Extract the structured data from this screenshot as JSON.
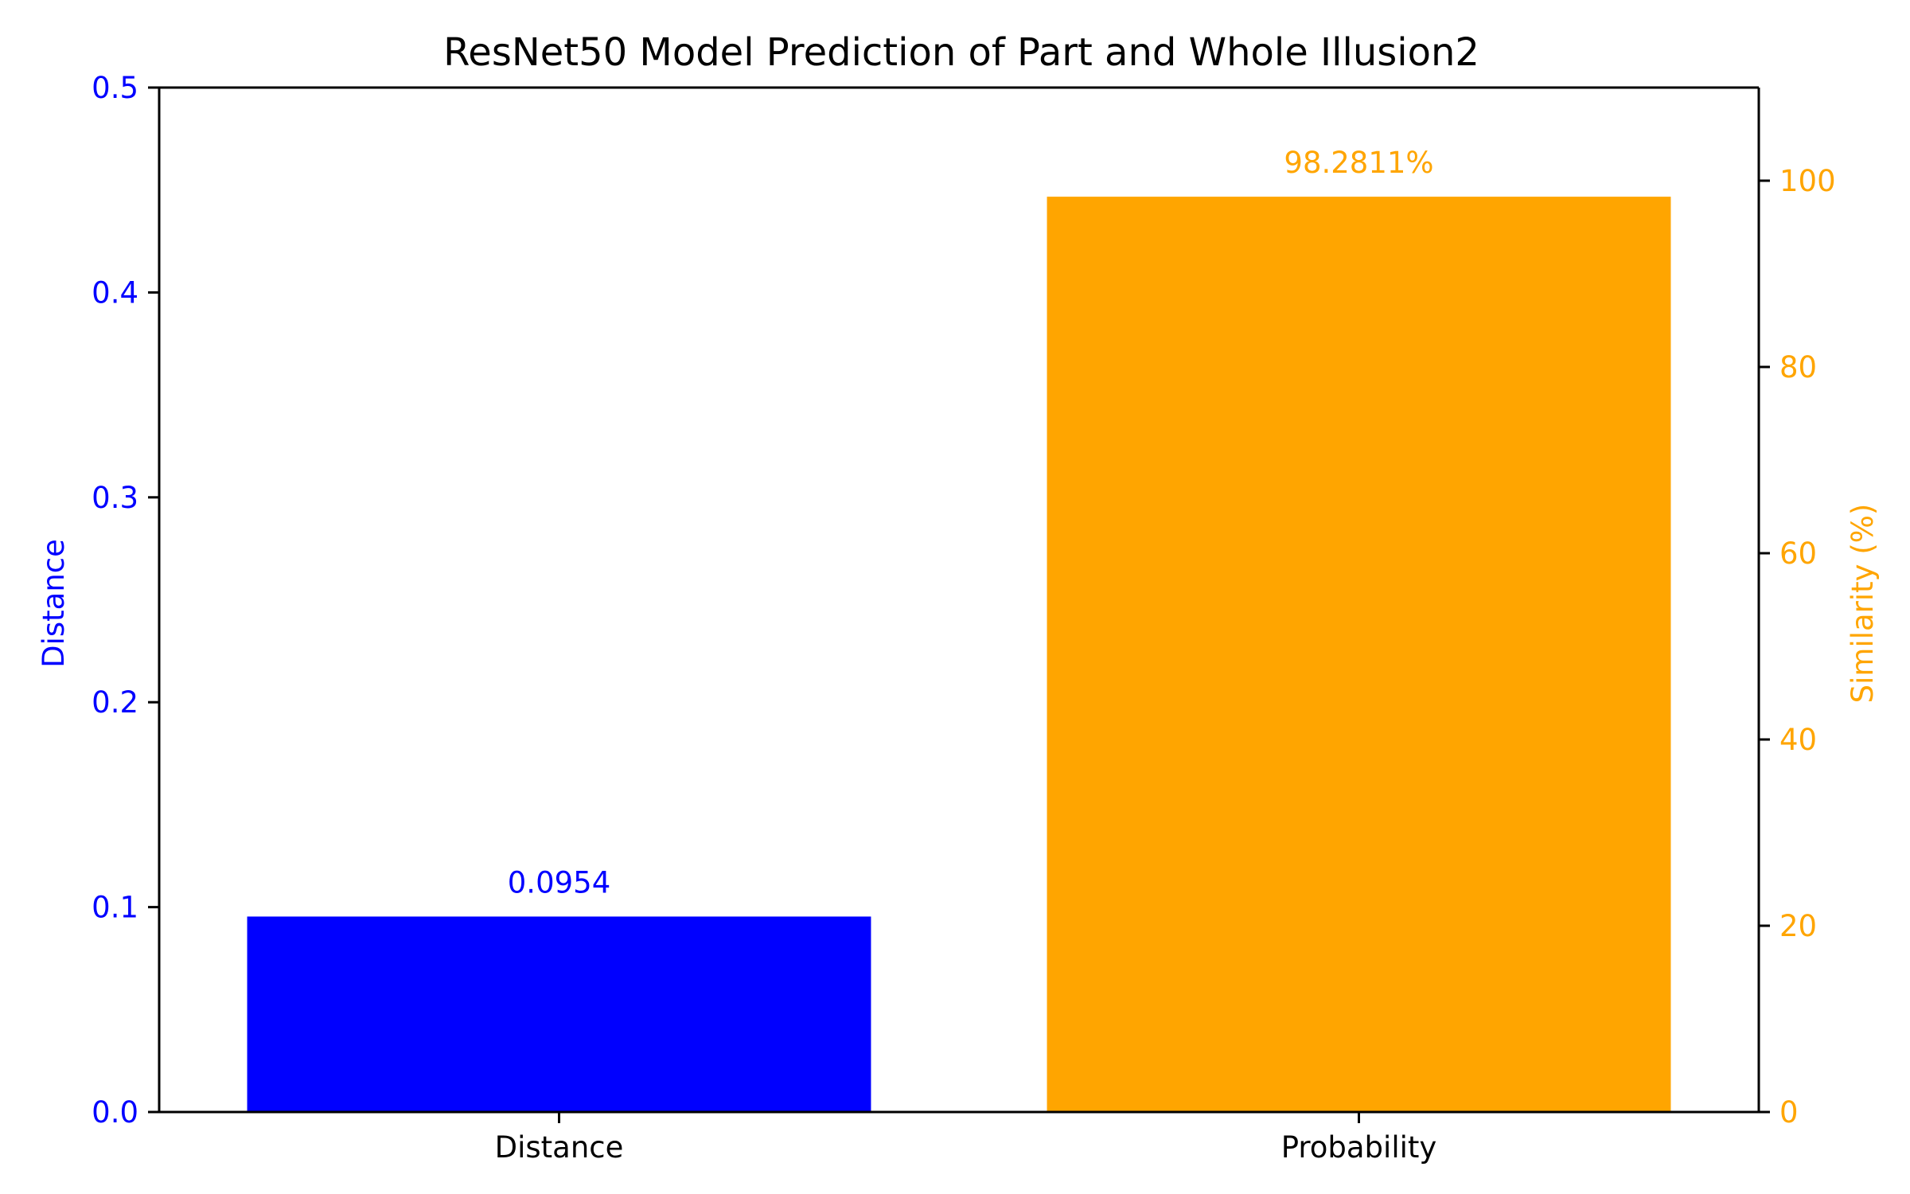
{
  "chart_data": {
    "type": "bar",
    "title": "ResNet50 Model Prediction of Part and Whole Illusion2",
    "categories": [
      "Distance",
      "Probability"
    ],
    "series": [
      {
        "axis": "left",
        "color": "#0000ff",
        "category": "Distance",
        "value": 0.0954,
        "label": "0.0954"
      },
      {
        "axis": "right",
        "color": "#ffa500",
        "category": "Probability",
        "value": 98.2811,
        "label": "98.2811%"
      }
    ],
    "left_axis": {
      "label": "Distance",
      "color": "#0000ff",
      "ylim": [
        0,
        0.5
      ],
      "ticks": [
        "0.0",
        "0.1",
        "0.2",
        "0.3",
        "0.4",
        "0.5"
      ]
    },
    "right_axis": {
      "label": "Similarity (%)",
      "color": "#ffa500",
      "ylim": [
        0,
        110
      ],
      "ticks": [
        "0",
        "20",
        "40",
        "60",
        "80",
        "100"
      ]
    },
    "grid": false,
    "legend": "none"
  }
}
